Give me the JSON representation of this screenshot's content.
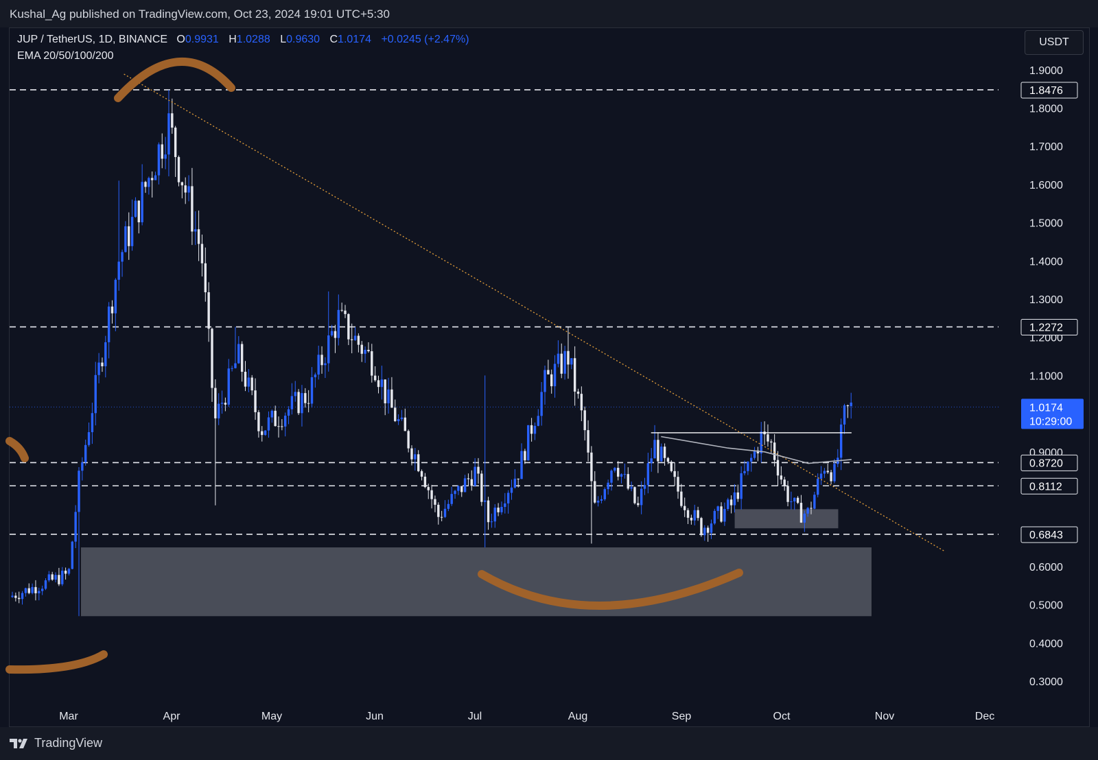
{
  "header": {
    "attribution": "Kushal_Ag published on TradingView.com, Oct 23, 2024 19:01 UTC+5:30"
  },
  "legend": {
    "symbol": "JUP / TetherUS, 1D, BINANCE",
    "open_label": "O",
    "open": "0.9931",
    "high_label": "H",
    "high": "1.0288",
    "low_label": "L",
    "low": "0.9630",
    "close_label": "C",
    "close": "1.0174",
    "change": "+0.0245 (+2.47%)",
    "indicator": "EMA 20/50/100/200"
  },
  "currency_button": "USDT",
  "footer": {
    "brand": "TradingView"
  },
  "colors": {
    "background": "#0f1320",
    "up": "#2962ff",
    "down": "#e6e8ee",
    "annotation": "#a0622a",
    "trendline": "#e8a13a",
    "zone": "#4a4d58"
  },
  "chart_data": {
    "type": "candlestick",
    "title": "JUP / TetherUS, 1D, BINANCE",
    "y_axis": {
      "ticks": [
        "1.9000",
        "1.8000",
        "1.7000",
        "1.6000",
        "1.5000",
        "1.4000",
        "1.3000",
        "1.2000",
        "1.1000",
        "0.9000",
        "0.6000",
        "0.5000",
        "0.4000",
        "0.3000"
      ],
      "range": [
        0.28,
        1.95
      ]
    },
    "x_axis": {
      "ticks": [
        "Mar",
        "Apr",
        "May",
        "Jun",
        "Jul",
        "Aug",
        "Sep",
        "Oct",
        "Nov",
        "Dec"
      ]
    },
    "grid": false,
    "last_price": {
      "value": "1.0174",
      "countdown": "10:29:00"
    },
    "horizontal_levels": [
      "1.8476",
      "1.2272",
      "0.8720",
      "0.8112",
      "0.6843"
    ],
    "demand_zones": [
      {
        "from_month": "Mar",
        "from_day": 1,
        "to_month": "Oct",
        "to_day": 28,
        "low": 0.47,
        "high": 0.65
      },
      {
        "from_month": "Sep",
        "from_day": 17,
        "to_month": "Oct",
        "to_day": 18,
        "low": 0.7,
        "high": 0.75
      }
    ],
    "trendline": {
      "from": [
        "Mar",
        30,
        1.86
      ],
      "to": [
        "Nov",
        19,
        0.64
      ]
    },
    "ema_line": [
      [
        "Aug",
        26,
        0.94
      ],
      [
        "Sep",
        15,
        0.91
      ],
      [
        "Sep",
        26,
        0.9
      ],
      [
        "Oct",
        9,
        0.87
      ],
      [
        "Oct",
        22,
        0.88
      ]
    ],
    "breakout_line": [
      [
        "Aug",
        23,
        0.95
      ],
      [
        "Oct",
        22,
        0.95
      ]
    ],
    "anchors": [
      {
        "month": "Feb",
        "day": 13,
        "price": 0.52
      },
      {
        "month": "Mar",
        "day": 1,
        "price": 0.58
      },
      {
        "month": "Mar",
        "day": 4,
        "price": 0.82
      },
      {
        "month": "Mar",
        "day": 16,
        "price": 1.4
      },
      {
        "month": "Mar",
        "day": 31,
        "price": 1.76
      },
      {
        "month": "Apr",
        "day": 10,
        "price": 1.42
      },
      {
        "month": "Apr",
        "day": 14,
        "price": 0.98
      },
      {
        "month": "Apr",
        "day": 21,
        "price": 1.15
      },
      {
        "month": "Apr",
        "day": 28,
        "price": 0.96
      },
      {
        "month": "May",
        "day": 12,
        "price": 1.05
      },
      {
        "month": "May",
        "day": 21,
        "price": 1.25
      },
      {
        "month": "Jun",
        "day": 1,
        "price": 1.13
      },
      {
        "month": "Jun",
        "day": 5,
        "price": 1.03
      },
      {
        "month": "Jun",
        "day": 15,
        "price": 0.86
      },
      {
        "month": "Jun",
        "day": 20,
        "price": 0.73
      },
      {
        "month": "Jul",
        "day": 1,
        "price": 0.85
      },
      {
        "month": "Jul",
        "day": 5,
        "price": 0.72
      },
      {
        "month": "Jul",
        "day": 14,
        "price": 0.85
      },
      {
        "month": "Jul",
        "day": 22,
        "price": 1.08
      },
      {
        "month": "Jul",
        "day": 29,
        "price": 1.15
      },
      {
        "month": "Aug",
        "day": 3,
        "price": 0.96
      },
      {
        "month": "Aug",
        "day": 6,
        "price": 0.75
      },
      {
        "month": "Aug",
        "day": 12,
        "price": 0.88
      },
      {
        "month": "Aug",
        "day": 19,
        "price": 0.75
      },
      {
        "month": "Aug",
        "day": 24,
        "price": 0.92
      },
      {
        "month": "Sep",
        "day": 1,
        "price": 0.78
      },
      {
        "month": "Sep",
        "day": 7,
        "price": 0.7
      },
      {
        "month": "Sep",
        "day": 16,
        "price": 0.76
      },
      {
        "month": "Sep",
        "day": 20,
        "price": 0.84
      },
      {
        "month": "Sep",
        "day": 25,
        "price": 0.94
      },
      {
        "month": "Sep",
        "day": 28,
        "price": 0.92
      },
      {
        "month": "Oct",
        "day": 2,
        "price": 0.8
      },
      {
        "month": "Oct",
        "day": 6,
        "price": 0.74
      },
      {
        "month": "Oct",
        "day": 9,
        "price": 0.74
      },
      {
        "month": "Oct",
        "day": 14,
        "price": 0.87
      },
      {
        "month": "Oct",
        "day": 17,
        "price": 0.84
      },
      {
        "month": "Oct",
        "day": 20,
        "price": 1.0
      },
      {
        "month": "Oct",
        "day": 22,
        "price": 1.0174
      }
    ]
  }
}
